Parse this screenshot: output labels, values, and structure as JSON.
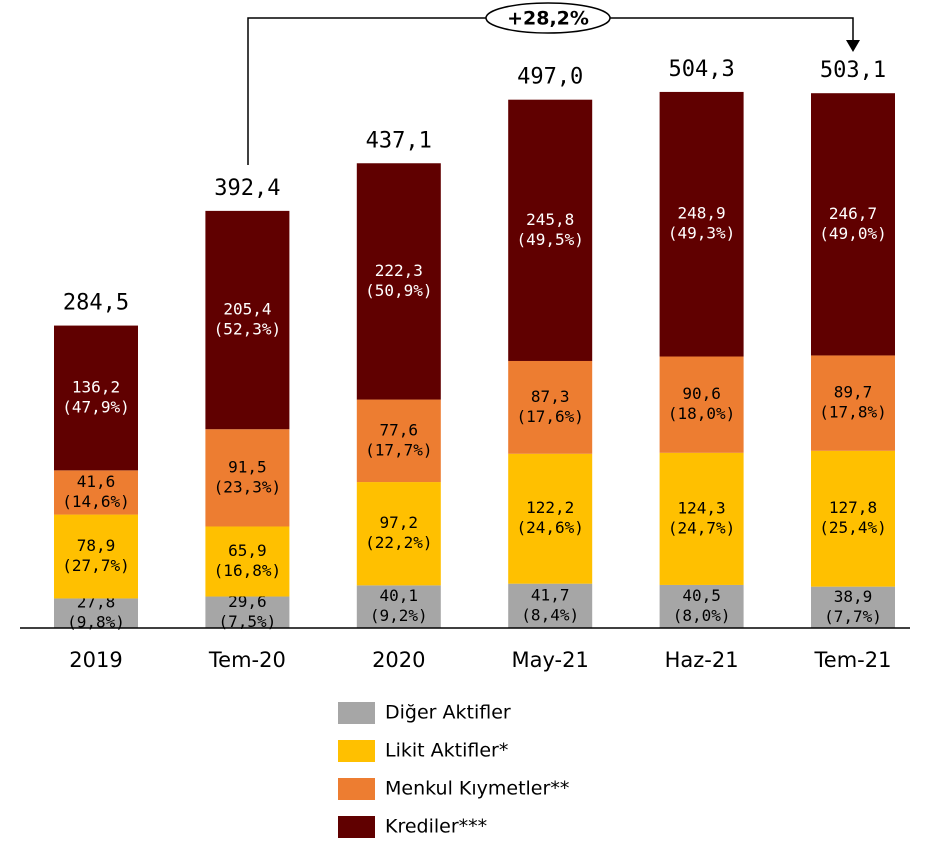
{
  "chart_data": {
    "type": "stacked_bar",
    "categories": [
      "2019",
      "Tem-20",
      "2020",
      "May-21",
      "Haz-21",
      "Tem-21"
    ],
    "series": [
      {
        "name": "Diğer Aktifler",
        "color": "#a6a6a6",
        "label_color": "#000000",
        "values": [
          27.8,
          29.6,
          40.1,
          41.7,
          40.5,
          38.9
        ],
        "value_labels": [
          "27,8",
          "29,6",
          "40,1",
          "41,7",
          "40,5",
          "38,9"
        ],
        "share_labels": [
          "(9,8%)",
          "(7,5%)",
          "(9,2%)",
          "(8,4%)",
          "(8,0%)",
          "(7,7%)"
        ]
      },
      {
        "name": "Likit Aktifler*",
        "color": "#ffc000",
        "label_color": "#000000",
        "values": [
          78.9,
          65.9,
          97.2,
          122.2,
          124.3,
          127.8
        ],
        "value_labels": [
          "78,9",
          "65,9",
          "97,2",
          "122,2",
          "124,3",
          "127,8"
        ],
        "share_labels": [
          "(27,7%)",
          "(16,8%)",
          "(22,2%)",
          "(24,6%)",
          "(24,7%)",
          "(25,4%)"
        ]
      },
      {
        "name": "Menkul Kıymetler**",
        "color": "#ed7d31",
        "label_color": "#000000",
        "values": [
          41.6,
          91.5,
          77.6,
          87.3,
          90.6,
          89.7
        ],
        "value_labels": [
          "41,6",
          "91,5",
          "77,6",
          "87,3",
          "90,6",
          "89,7"
        ],
        "share_labels": [
          "(14,6%)",
          "(23,3%)",
          "(17,7%)",
          "(17,6%)",
          "(18,0%)",
          "(17,8%)"
        ]
      },
      {
        "name": "Krediler***",
        "color": "#600000",
        "label_color": "#ffffff",
        "values": [
          136.2,
          205.4,
          222.3,
          245.8,
          248.9,
          246.7
        ],
        "value_labels": [
          "136,2",
          "205,4",
          "222,3",
          "245,8",
          "248,9",
          "246,7"
        ],
        "share_labels": [
          "(47,9%)",
          "(52,3%)",
          "(50,9%)",
          "(49,5%)",
          "(49,3%)",
          "(49,0%)"
        ]
      }
    ],
    "totals": [
      284.5,
      392.4,
      437.1,
      497.0,
      504.3,
      503.1
    ],
    "total_labels": [
      "284,5",
      "392,4",
      "437,1",
      "497,0",
      "504,3",
      "503,1"
    ],
    "annotation": "+28,2%"
  }
}
